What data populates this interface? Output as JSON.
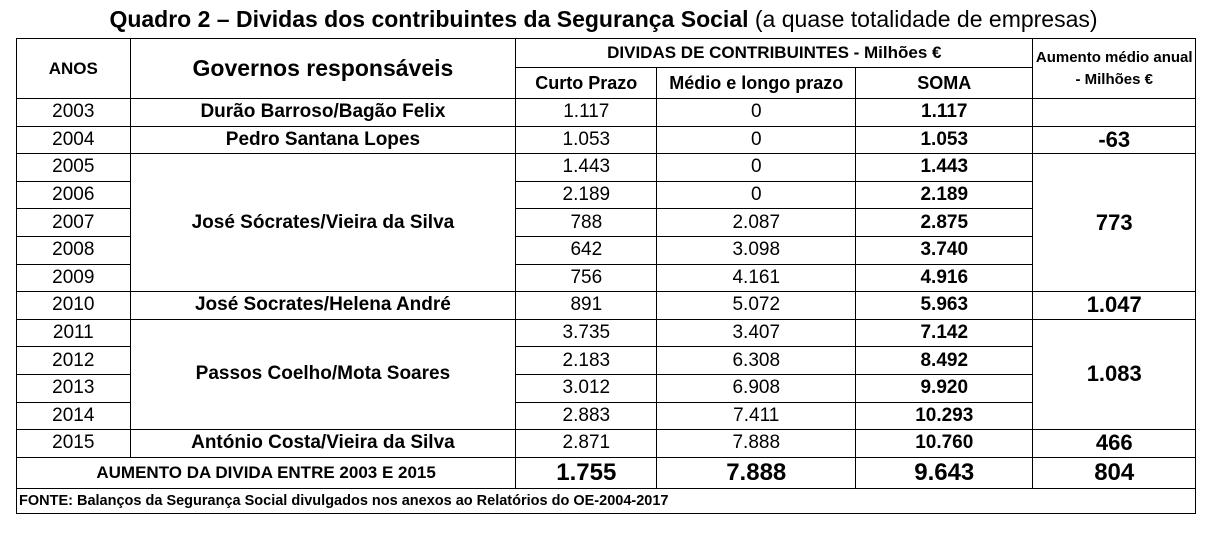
{
  "title": {
    "bold": "Quadro 2 – Dividas dos contribuintes da Segurança Social",
    "normal": " (a quase totalidade de empresas)"
  },
  "header": {
    "anos": "ANOS",
    "governos": "Governos responsáveis",
    "dividas": "DIVIDAS DE CONTRIBUINTES - Milhões €",
    "aumento": "Aumento médio anual - Milhões €",
    "curto": "Curto Prazo",
    "medio": "Médio e longo prazo",
    "soma": "SOMA"
  },
  "governments": [
    "Durão Barroso/Bagão Felix",
    "Pedro Santana Lopes",
    "José Sócrates/Vieira da Silva",
    "José Socrates/Helena André",
    "Passos Coelho/Mota Soares",
    "António Costa/Vieira da Silva"
  ],
  "increases": [
    "-63",
    "773",
    "1.047",
    "1.083",
    "466"
  ],
  "rows": [
    {
      "year": "2003",
      "curto": "1.117",
      "medio": "0",
      "soma": "1.117"
    },
    {
      "year": "2004",
      "curto": "1.053",
      "medio": "0",
      "soma": "1.053"
    },
    {
      "year": "2005",
      "curto": "1.443",
      "medio": "0",
      "soma": "1.443"
    },
    {
      "year": "2006",
      "curto": "2.189",
      "medio": "0",
      "soma": "2.189"
    },
    {
      "year": "2007",
      "curto": "788",
      "medio": "2.087",
      "soma": "2.875"
    },
    {
      "year": "2008",
      "curto": "642",
      "medio": "3.098",
      "soma": "3.740"
    },
    {
      "year": "2009",
      "curto": "756",
      "medio": "4.161",
      "soma": "4.916"
    },
    {
      "year": "2010",
      "curto": "891",
      "medio": "5.072",
      "soma": "5.963"
    },
    {
      "year": "2011",
      "curto": "3.735",
      "medio": "3.407",
      "soma": "7.142"
    },
    {
      "year": "2012",
      "curto": "2.183",
      "medio": "6.308",
      "soma": "8.492"
    },
    {
      "year": "2013",
      "curto": "3.012",
      "medio": "6.908",
      "soma": "9.920"
    },
    {
      "year": "2014",
      "curto": "2.883",
      "medio": "7.411",
      "soma": "10.293"
    },
    {
      "year": "2015",
      "curto": "2.871",
      "medio": "7.888",
      "soma": "10.760"
    }
  ],
  "total": {
    "label": "AUMENTO DA DIVIDA ENTRE 2003 E 2015",
    "curto": "1.755",
    "medio": "7.888",
    "soma": "9.643",
    "aumento": "804"
  },
  "source": "FONTE: Balanços da Segurança Social divulgados nos anexos ao Relatórios do OE-2004-2017"
}
